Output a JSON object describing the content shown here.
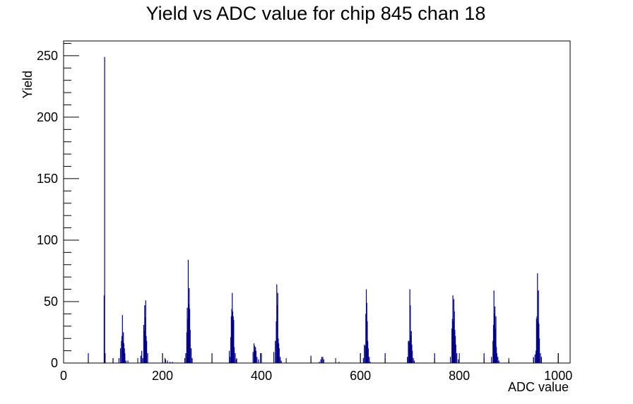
{
  "chart_data": {
    "type": "bar",
    "title": "Yield vs ADC value for chip 845 chan 18",
    "xlabel": "ADC value",
    "ylabel": "Yield",
    "xlim": [
      0,
      1024
    ],
    "ylim": [
      0,
      262
    ],
    "x_ticks": [
      0,
      200,
      400,
      600,
      800,
      1000
    ],
    "y_ticks": [
      0,
      50,
      100,
      150,
      200,
      250
    ],
    "grid": false,
    "bar_color": "#00008b",
    "series": [
      {
        "x": [
          50,
          82,
          83,
          84,
          100,
          112,
          115,
          117,
          118,
          119,
          120,
          121,
          122,
          123,
          124,
          126,
          130,
          156,
          158,
          160,
          162,
          163,
          164,
          165,
          166,
          167,
          168,
          170,
          200,
          205,
          206,
          210,
          215,
          220,
          245,
          247,
          249,
          250,
          251,
          252,
          253,
          254,
          255,
          256,
          258,
          260,
          300,
          335,
          337,
          338,
          339,
          340,
          341,
          342,
          343,
          344,
          345,
          347,
          349,
          383,
          385,
          386,
          387,
          388,
          389,
          391,
          394,
          398,
          425,
          428,
          430,
          431,
          432,
          433,
          434,
          435,
          436,
          438,
          440,
          500,
          517,
          520,
          522,
          524,
          526,
          557,
          600,
          606,
          608,
          610,
          611,
          612,
          613,
          614,
          615,
          616,
          618,
          620,
          650,
          695,
          697,
          698,
          699,
          700,
          701,
          702,
          703,
          704,
          705,
          707,
          709,
          750,
          782,
          785,
          786,
          787,
          788,
          789,
          790,
          791,
          792,
          793,
          795,
          798,
          850,
          865,
          868,
          869,
          870,
          871,
          872,
          873,
          874,
          875,
          876,
          878,
          880,
          900,
          950,
          953,
          955,
          956,
          957,
          958,
          959,
          960,
          961,
          962,
          964,
          966,
          1000
        ],
        "y": [
          8,
          55,
          249,
          8,
          4,
          4,
          12,
          18,
          22,
          39,
          18,
          25,
          16,
          12,
          8,
          2,
          2,
          6,
          10,
          4,
          31,
          26,
          47,
          37,
          51,
          22,
          18,
          8,
          8,
          4,
          3,
          2,
          1,
          1,
          4,
          8,
          25,
          45,
          36,
          84,
          48,
          61,
          44,
          27,
          12,
          4,
          8,
          10,
          5,
          21,
          38,
          44,
          57,
          42,
          38,
          35,
          13,
          8,
          3,
          9,
          16,
          14,
          10,
          13,
          10,
          5,
          3,
          8,
          9,
          18,
          34,
          64,
          47,
          57,
          20,
          16,
          12,
          5,
          2,
          6,
          1,
          3,
          5,
          5,
          3,
          1,
          8,
          4,
          15,
          14,
          40,
          60,
          49,
          34,
          18,
          12,
          5,
          1,
          8,
          5,
          18,
          18,
          17,
          60,
          47,
          22,
          26,
          15,
          10,
          4,
          2,
          8,
          5,
          28,
          36,
          55,
          34,
          52,
          42,
          27,
          22,
          15,
          8,
          3,
          8,
          5,
          18,
          31,
          59,
          40,
          46,
          28,
          38,
          13,
          8,
          5,
          2,
          2,
          5,
          7,
          10,
          36,
          38,
          73,
          34,
          59,
          32,
          20,
          8,
          5,
          8
        ]
      }
    ]
  }
}
